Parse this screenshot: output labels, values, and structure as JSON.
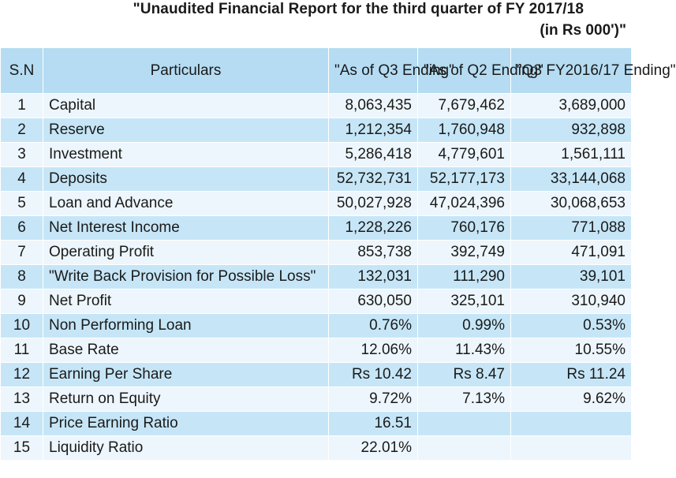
{
  "title": {
    "line1": "\"Unaudited Financial Report for the third quarter of FY 2017/18",
    "line2": "(in Rs 000')\""
  },
  "headers": {
    "sn": "S.N",
    "particulars": "Particulars",
    "q3": "\"As of Q3 Ending\"",
    "q2": "\"As of  Q2 Ending\"",
    "prev": "\"Q3 FY2016/17 Ending\""
  },
  "rows": [
    {
      "sn": "1",
      "particulars": "Capital",
      "q3": "8,063,435",
      "q2": "7,679,462",
      "prev": "3,689,000"
    },
    {
      "sn": "2",
      "particulars": "Reserve",
      "q3": "1,212,354",
      "q2": "1,760,948",
      "prev": "932,898"
    },
    {
      "sn": "3",
      "particulars": "Investment",
      "q3": "5,286,418",
      "q2": "4,779,601",
      "prev": "1,561,111"
    },
    {
      "sn": "4",
      "particulars": "Deposits",
      "q3": "52,732,731",
      "q2": "52,177,173",
      "prev": "33,144,068"
    },
    {
      "sn": "5",
      "particulars": "Loan and Advance",
      "q3": "50,027,928",
      "q2": "47,024,396",
      "prev": "30,068,653"
    },
    {
      "sn": "6",
      "particulars": "Net Interest Income",
      "q3": "1,228,226",
      "q2": "760,176",
      "prev": "771,088"
    },
    {
      "sn": "7",
      "particulars": "Operating Profit",
      "q3": "853,738",
      "q2": "392,749",
      "prev": "471,091"
    },
    {
      "sn": "8",
      "particulars": "\"Write Back Provision for Possible Loss\"",
      "q3": "132,031",
      "q2": "111,290",
      "prev": "39,101"
    },
    {
      "sn": "9",
      "particulars": "Net Profit",
      "q3": "630,050",
      "q2": "325,101",
      "prev": "310,940"
    },
    {
      "sn": "10",
      "particulars": "Non Performing Loan",
      "q3": "0.76%",
      "q2": "0.99%",
      "prev": "0.53%"
    },
    {
      "sn": "11",
      "particulars": "Base Rate",
      "q3": "12.06%",
      "q2": "11.43%",
      "prev": "10.55%"
    },
    {
      "sn": "12",
      "particulars": "Earning Per Share",
      "q3": "Rs 10.42",
      "q2": "Rs 8.47",
      "prev": "Rs 11.24"
    },
    {
      "sn": "13",
      "particulars": "Return on Equity",
      "q3": "9.72%",
      "q2": "7.13%",
      "prev": "9.62%"
    },
    {
      "sn": "14",
      "particulars": "Price Earning Ratio",
      "q3": "16.51",
      "q2": "",
      "prev": ""
    },
    {
      "sn": "15",
      "particulars": "Liquidity Ratio",
      "q3": "22.01%",
      "q2": "",
      "prev": ""
    }
  ]
}
